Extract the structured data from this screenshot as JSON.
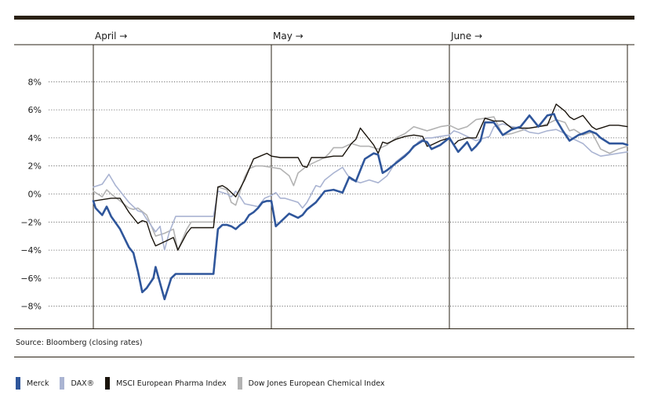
{
  "source_note": "Source: Bloomberg (closing rates)",
  "colors": {
    "merck": "#2f569b",
    "dax": "#aab4d2",
    "msci": "#1a140c",
    "dj": "#b3b3b3",
    "frame": "#2a2114",
    "grid": "#555555"
  },
  "chart_data": {
    "type": "line",
    "title": "",
    "xlabel": "",
    "ylabel": "",
    "ylim": [
      -10,
      10
    ],
    "y_ticks": [
      8,
      6,
      4,
      2,
      0,
      -2,
      -4,
      -6,
      -8
    ],
    "y_tick_labels": [
      "8%",
      "6%",
      "4%",
      "2%",
      "0%",
      "−2%",
      "−4%",
      "−6%",
      "−8%"
    ],
    "month_markers": [
      {
        "label": "April →",
        "x": 0
      },
      {
        "label": "May →",
        "x": 20
      },
      {
        "label": "June →",
        "x": 40
      }
    ],
    "x_range": [
      0,
      60
    ],
    "grid": "horizontal dotted",
    "legend_position": "bottom",
    "series": [
      {
        "name": "Merck",
        "x": [
          0,
          0.25,
          1,
          1.5,
          2,
          3,
          4,
          4.5,
          5,
          5.5,
          6,
          6.75,
          7,
          8,
          8.75,
          9.25,
          9.75,
          10.5,
          11,
          11.5,
          12,
          12.5,
          13,
          13.5,
          14,
          14.5,
          15,
          15.5,
          16,
          16.5,
          17,
          17.5,
          18,
          18.5,
          19,
          19.5,
          20,
          20.5,
          21,
          22,
          23,
          23.5,
          24,
          25,
          26,
          27,
          28,
          28.75,
          29.5,
          30.5,
          31.5,
          32,
          32.5,
          33,
          34,
          35,
          35.5,
          36,
          37,
          37.5,
          38,
          39,
          40,
          41,
          42,
          42.5,
          43,
          43.5,
          44,
          45,
          46,
          47,
          48,
          48.5,
          49,
          50,
          51,
          51.75,
          52,
          52.75,
          53.5,
          54.5,
          55,
          55.75,
          56.5,
          57,
          58,
          58.75,
          59.5,
          60
        ],
        "values": [
          -0.5,
          -1.0,
          -1.5,
          -0.9,
          -1.6,
          -2.5,
          -3.8,
          -4.2,
          -5.5,
          -7.0,
          -6.7,
          -6.0,
          -5.2,
          -7.5,
          -6.0,
          -5.7,
          -5.7,
          -5.7,
          -5.7,
          -5.7,
          -5.7,
          -5.7,
          -5.7,
          -5.7,
          -2.5,
          -2.2,
          -2.2,
          -2.3,
          -2.5,
          -2.2,
          -2.0,
          -1.5,
          -1.3,
          -1.0,
          -0.6,
          -0.5,
          -0.5,
          -2.3,
          -2.0,
          -1.4,
          -1.7,
          -1.5,
          -1.1,
          -0.6,
          0.2,
          0.3,
          0.1,
          1.2,
          0.9,
          2.5,
          2.9,
          2.8,
          1.5,
          1.7,
          2.2,
          2.7,
          3.0,
          3.4,
          3.8,
          3.7,
          3.2,
          3.5,
          4.0,
          3.0,
          3.7,
          3.1,
          3.4,
          3.8,
          5.1,
          5.1,
          4.2,
          4.6,
          4.8,
          5.2,
          5.6,
          4.8,
          5.6,
          5.7,
          5.3,
          4.5,
          3.8,
          4.2,
          4.3,
          4.5,
          4.3,
          4.0,
          3.6,
          3.6,
          3.6,
          3.5
        ]
      },
      {
        "name": "DAX®",
        "x": [
          0,
          1,
          1.75,
          2.5,
          3,
          4,
          5,
          5.5,
          6,
          7,
          7.5,
          8,
          8.5,
          9.25,
          9.75,
          10.5,
          11,
          12,
          13,
          13.5,
          14,
          15,
          15.5,
          16,
          16.5,
          17,
          17.75,
          18.5,
          19.25,
          20,
          20.5,
          21,
          21.5,
          22.5,
          23,
          23.5,
          24,
          25,
          25.5,
          26,
          27,
          28,
          28.5,
          29,
          30,
          31,
          32,
          33,
          33.5,
          34,
          35,
          36,
          36.5,
          37,
          37.5,
          38,
          39,
          40,
          40.5,
          41,
          42,
          43,
          44,
          44.5,
          45,
          46,
          47,
          48,
          49,
          50,
          51,
          52,
          53,
          54,
          55,
          56,
          57,
          58,
          59,
          60
        ],
        "values": [
          0.5,
          0.7,
          1.4,
          0.6,
          0.2,
          -0.6,
          -1.2,
          -1.3,
          -1.8,
          -2.7,
          -2.3,
          -4.0,
          -2.8,
          -1.6,
          -1.6,
          -1.6,
          -1.6,
          -1.6,
          -1.6,
          -1.6,
          0.2,
          0.0,
          -0.2,
          0.2,
          -0.2,
          -0.7,
          -0.8,
          -0.9,
          -0.3,
          -0.1,
          0.1,
          -0.3,
          -0.3,
          -0.5,
          -0.6,
          -1.0,
          -0.6,
          0.6,
          0.5,
          1.0,
          1.5,
          1.9,
          1.4,
          1.0,
          0.8,
          1.0,
          0.8,
          1.3,
          1.8,
          2.3,
          2.8,
          3.3,
          3.7,
          3.9,
          4.0,
          4.0,
          4.1,
          4.2,
          4.5,
          4.4,
          4.1,
          3.8,
          4.0,
          4.1,
          4.8,
          5.0,
          4.8,
          4.7,
          4.4,
          4.3,
          4.5,
          4.6,
          4.3,
          3.9,
          3.6,
          3.0,
          2.7,
          2.8,
          2.9,
          3.0
        ]
      },
      {
        "name": "MSCI European Pharma Index",
        "x": [
          0,
          1,
          2,
          3,
          4,
          5,
          5.5,
          6,
          6.5,
          7,
          8,
          9,
          9.5,
          10.5,
          11,
          12,
          13,
          13.5,
          14,
          14.5,
          15,
          16,
          17,
          18,
          18.75,
          19.5,
          20,
          21,
          22,
          23,
          23.5,
          24,
          24.5,
          25,
          26,
          27,
          28,
          29,
          29.5,
          30,
          31,
          31.5,
          32,
          32.5,
          33,
          34,
          35,
          36,
          37,
          37.5,
          38,
          39,
          40,
          40.5,
          41,
          42,
          43,
          44,
          45,
          46,
          47,
          48,
          49,
          50,
          51,
          52,
          53,
          53.5,
          54,
          55,
          56,
          56.5,
          57,
          58,
          59,
          60
        ],
        "values": [
          -0.5,
          -0.4,
          -0.3,
          -0.3,
          -1.3,
          -2.1,
          -1.9,
          -2.0,
          -3.0,
          -3.7,
          -3.4,
          -3.1,
          -4.0,
          -2.8,
          -2.4,
          -2.4,
          -2.4,
          -2.4,
          0.5,
          0.6,
          0.4,
          -0.2,
          1.0,
          2.5,
          2.7,
          2.9,
          2.7,
          2.6,
          2.6,
          2.6,
          2.0,
          1.9,
          2.6,
          2.6,
          2.6,
          2.7,
          2.7,
          3.6,
          3.9,
          4.7,
          3.9,
          3.5,
          2.9,
          3.7,
          3.6,
          3.9,
          4.1,
          4.2,
          4.1,
          3.4,
          3.5,
          3.8,
          4.0,
          3.5,
          3.8,
          4.0,
          4.0,
          5.4,
          5.2,
          5.2,
          4.7,
          4.7,
          4.7,
          4.8,
          4.9,
          6.4,
          5.9,
          5.5,
          5.3,
          5.6,
          4.8,
          4.6,
          4.7,
          4.9,
          4.9,
          4.8
        ]
      },
      {
        "name": "Dow Jones European Chemical Index",
        "x": [
          0,
          1,
          1.5,
          2,
          3,
          4,
          4.5,
          5,
          6,
          7,
          8,
          9,
          9.5,
          10.5,
          11,
          12,
          13,
          13.5,
          14,
          15,
          15.5,
          16,
          17,
          17.5,
          18.25,
          19,
          20,
          21,
          22,
          22.5,
          23,
          24,
          25,
          26,
          26.5,
          27,
          28,
          29,
          30,
          31,
          32,
          33,
          34,
          35,
          36,
          37,
          37.5,
          38,
          39,
          40,
          41,
          42,
          43,
          44,
          45,
          46,
          47,
          48,
          49,
          50,
          51,
          52,
          53,
          53.5,
          54,
          55,
          56,
          57,
          58,
          59,
          60
        ],
        "values": [
          0.2,
          -0.2,
          0.3,
          0.0,
          -0.5,
          -1.0,
          -1.1,
          -1.0,
          -1.5,
          -3.0,
          -2.8,
          -2.5,
          -4.0,
          -2.5,
          -2.0,
          -2.0,
          -2.0,
          -2.0,
          0.5,
          0.3,
          -0.6,
          -0.8,
          1.2,
          1.8,
          2.0,
          2.0,
          1.9,
          1.8,
          1.3,
          0.6,
          1.5,
          2.0,
          2.3,
          2.6,
          2.9,
          3.3,
          3.3,
          3.6,
          3.4,
          3.4,
          3.2,
          3.5,
          4.0,
          4.3,
          4.8,
          4.6,
          4.5,
          4.6,
          4.8,
          4.9,
          4.6,
          4.8,
          5.3,
          5.4,
          5.5,
          4.2,
          4.3,
          4.5,
          4.7,
          4.8,
          5.0,
          5.3,
          5.1,
          4.5,
          4.6,
          4.2,
          4.4,
          3.2,
          2.9,
          3.2,
          3.4
        ]
      }
    ]
  }
}
